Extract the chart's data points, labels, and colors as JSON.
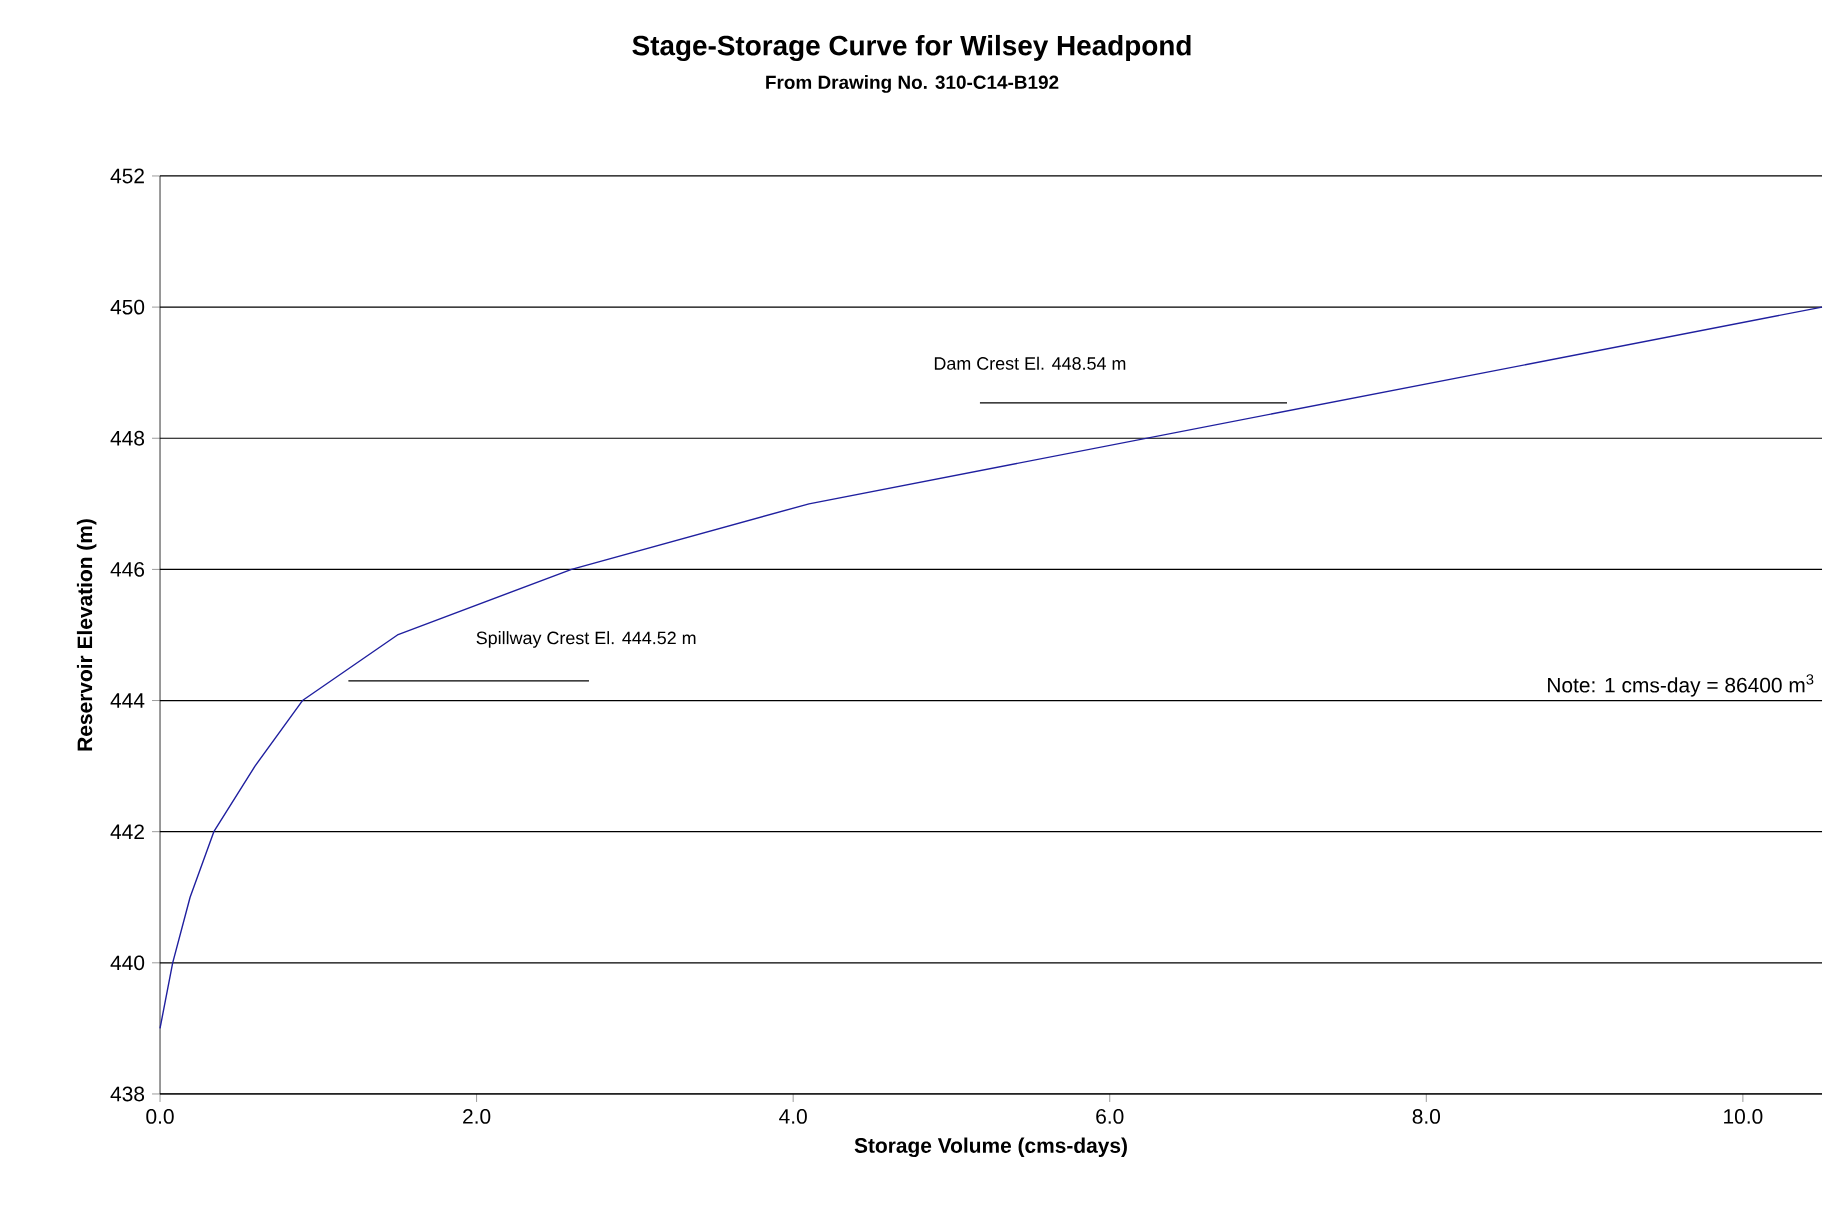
{
  "chart_data": {
    "type": "line",
    "title": "Stage-Storage Curve for Wilsey Headpond",
    "subtitle": "From Drawing No. 310-C14-B192",
    "xlabel": "Storage Volume (cms-days)",
    "ylabel": "Reservoir Elevation (m)",
    "series": [
      {
        "color": "#1f1f9f",
        "x": [
          0,
          0.08,
          0.19,
          0.34,
          0.6,
          0.9,
          1.2,
          1.5,
          2.6,
          4.1,
          10.5
        ],
        "values": [
          439,
          440,
          441,
          442,
          443,
          444,
          444.5,
          445,
          446,
          447,
          450
        ]
      },
      {
        "color": "#000000",
        "x": [
          5.18,
          7.12
        ],
        "values": [
          448.54,
          448.54
        ]
      },
      {
        "color": "#000000",
        "x": [
          1.19,
          2.71
        ],
        "values": [
          444.3,
          444.3
        ]
      }
    ],
    "xlim": [
      0,
      10.5
    ],
    "xticks": [
      {
        "value": 0,
        "label": "0.0"
      },
      {
        "value": 2,
        "label": "2.0"
      },
      {
        "value": 4,
        "label": "4.0"
      },
      {
        "value": 6,
        "label": "6.0"
      },
      {
        "value": 8,
        "label": "8.0"
      },
      {
        "value": 10,
        "label": "10.0"
      }
    ],
    "ylim": [
      438,
      452
    ],
    "yticks": [
      438,
      440,
      442,
      444,
      446,
      448,
      450,
      452
    ],
    "grid": "y",
    "marker": "none",
    "line_style": "solid",
    "annotations": [
      "Dam Crest El. 448.54 m",
      "Spillway Crest El. 444.52 m",
      "Note: 1 cms-day = 86400 m$^{3}$"
    ]
  }
}
